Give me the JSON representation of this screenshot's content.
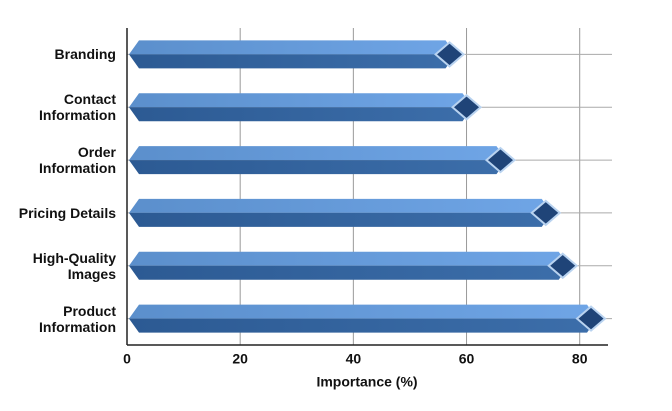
{
  "chart_data": {
    "type": "bar",
    "orientation": "horizontal",
    "xlabel": "Importance (%)",
    "categories": [
      "Branding",
      "Contact Information",
      "Order Information",
      "Pricing Details",
      "High-Quality Images",
      "Product Information"
    ],
    "values": [
      57,
      60,
      66,
      74,
      77,
      82
    ],
    "color": "#4f86c6",
    "xlim": [
      0,
      85
    ],
    "xticks": [
      0,
      20,
      40,
      60,
      80
    ],
    "grid": true
  }
}
